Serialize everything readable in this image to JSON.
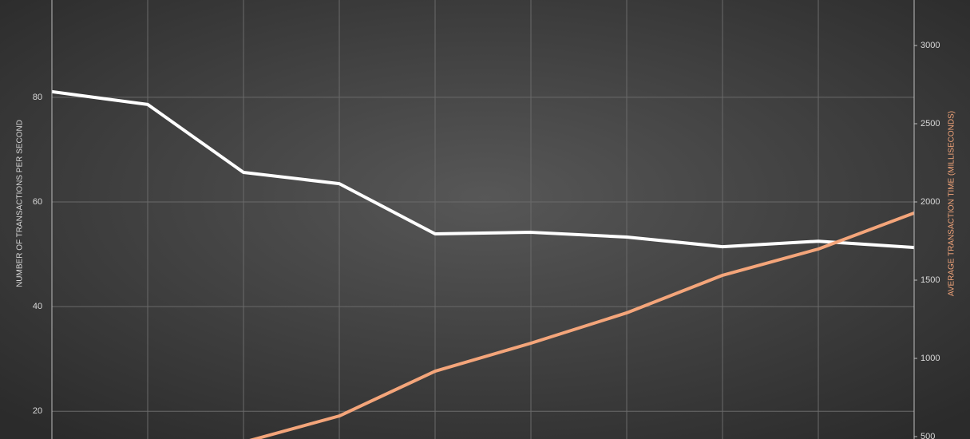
{
  "chart_data": {
    "type": "line",
    "categories": [
      null,
      null,
      null,
      null,
      null,
      null,
      null,
      null,
      null,
      null
    ],
    "series": [
      {
        "name": null,
        "color": "#ffffff",
        "values": [
          81.07,
          78.63,
          65.65,
          63.5,
          53.9,
          54.2,
          53.3,
          51.45,
          52.5,
          51.3
        ]
      },
      {
        "name": null,
        "color": "#f4a57a",
        "axis": "y2",
        "values": [
          null,
          null,
          464,
          632,
          918,
          1097,
          1291,
          1531,
          1699,
          1929
        ]
      }
    ],
    "ylabel": "NUMBER OF TRANSACTIONS PER SECOND",
    "y2label": "AVERAGE TRANSACTION TIME (MILLISECONDS)",
    "ylim": [
      14.7,
      98.6
    ],
    "yticks": [
      20,
      40,
      60,
      80
    ],
    "y2lim": [
      484.7,
      3290.8
    ],
    "y2ticks": [
      500,
      1000,
      1500,
      2000,
      2500,
      3000
    ],
    "grid": true
  }
}
